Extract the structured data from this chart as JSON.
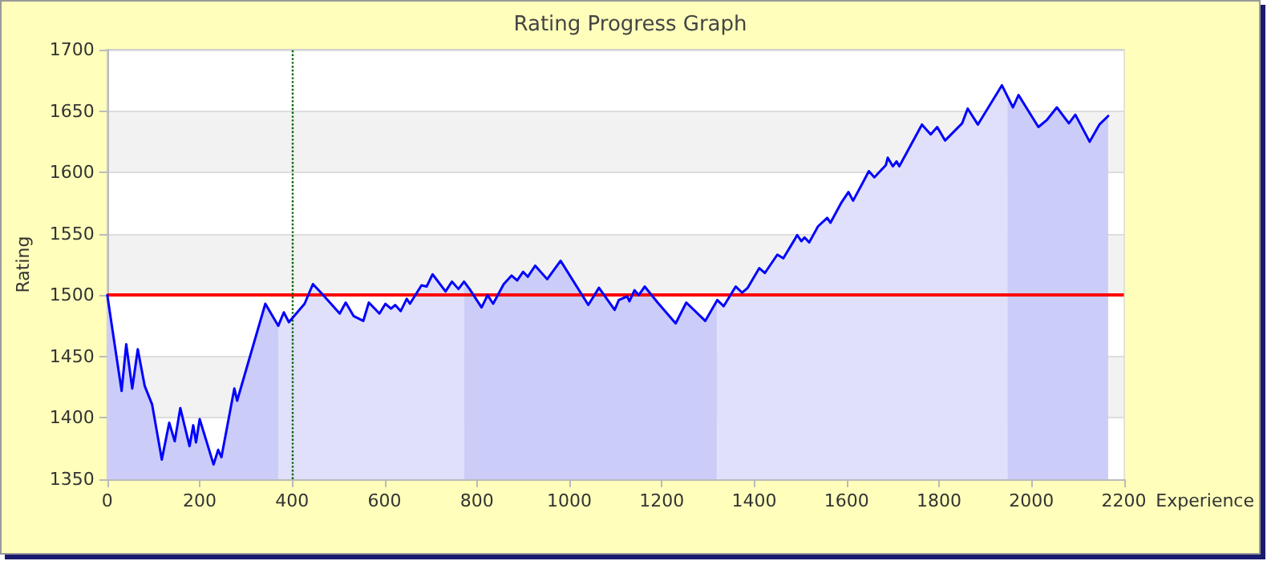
{
  "chart_data": {
    "type": "line",
    "title": "Rating Progress Graph",
    "xlabel": "Experience",
    "ylabel": "Rating",
    "x": [
      0,
      31,
      41,
      54,
      66,
      81,
      97,
      118,
      134,
      146,
      158,
      178,
      186,
      192,
      200,
      230,
      240,
      247,
      275,
      281,
      342,
      370,
      382,
      393,
      427,
      445,
      465,
      503,
      516,
      533,
      554,
      566,
      589,
      602,
      614,
      623,
      635,
      648,
      655,
      680,
      691,
      704,
      732,
      746,
      760,
      772,
      784,
      810,
      823,
      835,
      858,
      875,
      887,
      900,
      910,
      926,
      952,
      981,
      1041,
      1064,
      1098,
      1107,
      1125,
      1130,
      1141,
      1150,
      1163,
      1191,
      1230,
      1253,
      1294,
      1320,
      1334,
      1360,
      1374,
      1386,
      1411,
      1423,
      1450,
      1463,
      1487,
      1493,
      1502,
      1509,
      1519,
      1538,
      1558,
      1565,
      1588,
      1604,
      1614,
      1634,
      1648,
      1660,
      1685,
      1689,
      1700,
      1708,
      1714,
      1763,
      1782,
      1796,
      1813,
      1850,
      1862,
      1884,
      1936,
      1960,
      1972,
      2015,
      2034,
      2055,
      2081,
      2095,
      2126,
      2147,
      2166
    ],
    "series": [
      {
        "type": "area",
        "color": "#ccccf8",
        "x": [
          0,
          31,
          41,
          54,
          66,
          81,
          97,
          118,
          134,
          146,
          158,
          178,
          186,
          192,
          200,
          230,
          240,
          247,
          275,
          281,
          342,
          370
        ],
        "values": [
          1500,
          1422,
          1460,
          1424,
          1456,
          1426,
          1411,
          1366,
          1396,
          1381,
          1408,
          1377,
          1394,
          1380,
          1399,
          1362,
          1374,
          1368,
          1424,
          1414,
          1493,
          1475
        ]
      },
      {
        "type": "area",
        "color": "#e0e0fa",
        "x": [
          370,
          382,
          393,
          427,
          445,
          465,
          503,
          516,
          533,
          554,
          566,
          589,
          602,
          614,
          623,
          635,
          648,
          655,
          680,
          691,
          704,
          732,
          746,
          760,
          772
        ],
        "values": [
          1475,
          1486,
          1478,
          1493,
          1509,
          1501,
          1485,
          1494,
          1483,
          1479,
          1494,
          1485,
          1493,
          1489,
          1492,
          1487,
          1497,
          1493,
          1508,
          1507,
          1517,
          1503,
          1511,
          1505,
          1511
        ]
      },
      {
        "type": "area",
        "color": "#ccccf8",
        "x": [
          772,
          784,
          810,
          823,
          835,
          858,
          875,
          887,
          900,
          910,
          926,
          952,
          981,
          1041,
          1064,
          1098,
          1107,
          1125,
          1130,
          1141,
          1150,
          1163,
          1191,
          1230,
          1253,
          1294,
          1320
        ],
        "values": [
          1511,
          1505,
          1490,
          1500,
          1493,
          1509,
          1516,
          1512,
          1519,
          1515,
          1524,
          1513,
          1528,
          1492,
          1506,
          1488,
          1496,
          1499,
          1495,
          1504,
          1500,
          1507,
          1494,
          1477,
          1494,
          1479,
          1496
        ]
      },
      {
        "type": "area",
        "color": "#e0e0fa",
        "x": [
          1320,
          1334,
          1360,
          1374,
          1386,
          1411,
          1423,
          1450,
          1463,
          1487,
          1493,
          1502,
          1509,
          1519,
          1538,
          1558,
          1565,
          1588,
          1604,
          1614,
          1634,
          1648,
          1660,
          1685,
          1689,
          1700,
          1708,
          1714,
          1763,
          1782,
          1796,
          1813,
          1850,
          1862,
          1884,
          1936,
          1948
        ],
        "values": [
          1496,
          1491,
          1507,
          1502,
          1506,
          1522,
          1518,
          1533,
          1530,
          1545,
          1549,
          1544,
          1547,
          1543,
          1556,
          1563,
          1559,
          1575,
          1584,
          1577,
          1591,
          1601,
          1596,
          1606,
          1612,
          1605,
          1609,
          1605,
          1639,
          1631,
          1637,
          1626,
          1640,
          1652,
          1639,
          1671,
          1662
        ]
      },
      {
        "type": "area",
        "color": "#ccccf8",
        "x": [
          1948,
          1960,
          1972,
          2015,
          2034,
          2055,
          2081,
          2095,
          2126,
          2147,
          2166
        ],
        "values": [
          1662,
          1653,
          1663,
          1637,
          1643,
          1653,
          1640,
          1647,
          1625,
          1639,
          1646
        ]
      },
      {
        "color": "#0000ff",
        "values": [
          1500,
          1422,
          1460,
          1424,
          1456,
          1426,
          1411,
          1366,
          1396,
          1381,
          1408,
          1377,
          1394,
          1380,
          1399,
          1362,
          1374,
          1368,
          1424,
          1414,
          1493,
          1475,
          1486,
          1478,
          1493,
          1509,
          1501,
          1485,
          1494,
          1483,
          1479,
          1494,
          1485,
          1493,
          1489,
          1492,
          1487,
          1497,
          1493,
          1508,
          1507,
          1517,
          1503,
          1511,
          1505,
          1511,
          1505,
          1490,
          1500,
          1493,
          1509,
          1516,
          1512,
          1519,
          1515,
          1524,
          1513,
          1528,
          1492,
          1506,
          1488,
          1496,
          1499,
          1495,
          1504,
          1500,
          1507,
          1494,
          1477,
          1494,
          1479,
          1496,
          1491,
          1507,
          1502,
          1506,
          1522,
          1518,
          1533,
          1530,
          1545,
          1549,
          1544,
          1547,
          1543,
          1556,
          1563,
          1559,
          1575,
          1584,
          1577,
          1591,
          1601,
          1596,
          1606,
          1612,
          1605,
          1609,
          1605,
          1639,
          1631,
          1637,
          1626,
          1640,
          1652,
          1639,
          1671,
          1653,
          1663,
          1637,
          1643,
          1653,
          1640,
          1647,
          1625,
          1639,
          1646
        ]
      }
    ],
    "xlim": [
      0,
      2200
    ],
    "xticks": [
      0,
      200,
      400,
      600,
      800,
      1000,
      1200,
      1400,
      1600,
      1800,
      2000,
      2200
    ],
    "ylim": [
      1350,
      1700
    ],
    "yticks": [
      1350,
      1400,
      1450,
      1500,
      1550,
      1600,
      1650,
      1700
    ],
    "grid": "y",
    "marker": "none",
    "line_style": "solid",
    "ref_lines": [
      {
        "axis": "y",
        "value": 1500,
        "color": "#ff0000",
        "line_style": "solid"
      },
      {
        "axis": "x",
        "value": 400,
        "color": "#006600",
        "line_style": "dotted"
      }
    ]
  }
}
